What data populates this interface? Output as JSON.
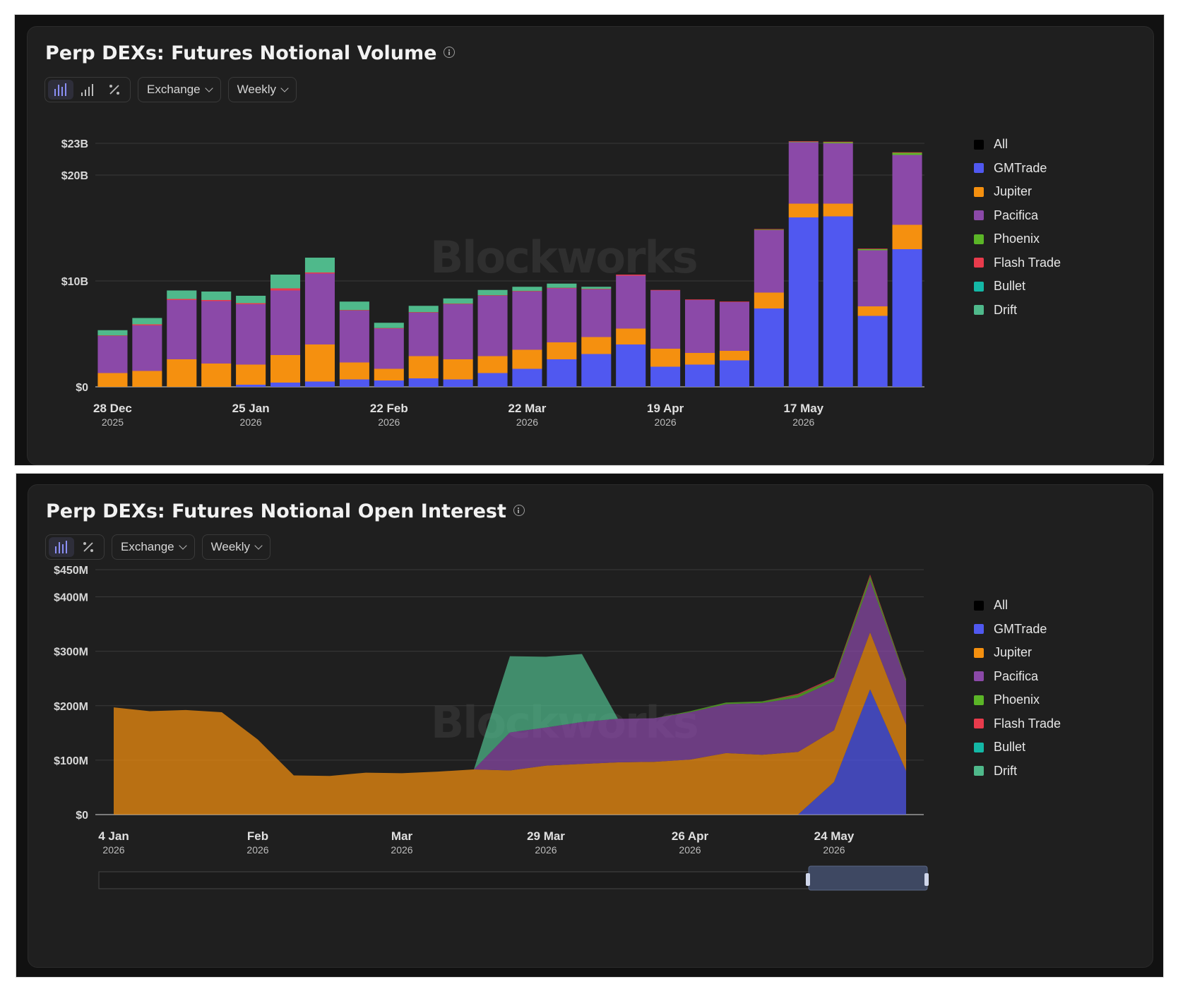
{
  "colors": {
    "All": "#000000",
    "GMTrade": "#5058f0",
    "Jupiter": "#f5900f",
    "Pacifica": "#8b49a8",
    "Phoenix": "#5bb527",
    "Flash Trade": "#e83b4c",
    "Bullet": "#14b8a6",
    "Drift": "#4fb98b"
  },
  "watermark": "Blockworks",
  "legend": [
    "All",
    "GMTrade",
    "Jupiter",
    "Pacifica",
    "Phoenix",
    "Flash Trade",
    "Bullet",
    "Drift"
  ],
  "volume": {
    "title": "Perp DEXs: Futures Notional Volume",
    "toolbar": {
      "icons": [
        "bar-chart-icon",
        "signal-bars-icon",
        "percent-icon"
      ],
      "dropdowns": [
        "Exchange",
        "Weekly"
      ]
    }
  },
  "oi": {
    "title": "Perp DEXs: Futures Notional Open Interest",
    "toolbar": {
      "icons": [
        "bar-chart-icon",
        "percent-icon"
      ],
      "dropdowns": [
        "Exchange",
        "Weekly"
      ]
    }
  },
  "chart_data": [
    {
      "type": "bar",
      "stacked": true,
      "title": "Perp DEXs: Futures Notional Volume",
      "y_unit": "USD billions",
      "ylim": [
        0,
        23
      ],
      "yticks": [
        {
          "value": 0,
          "label": "$0"
        },
        {
          "value": 10,
          "label": "$10B"
        },
        {
          "value": 20,
          "label": "$20B"
        },
        {
          "value": 23,
          "label": "$23B"
        }
      ],
      "xticks": [
        {
          "index": 0,
          "label": "28 Dec",
          "sub": "2025"
        },
        {
          "index": 4,
          "label": "25 Jan",
          "sub": "2026"
        },
        {
          "index": 8,
          "label": "22 Feb",
          "sub": "2026"
        },
        {
          "index": 12,
          "label": "22 Mar",
          "sub": "2026"
        },
        {
          "index": 16,
          "label": "19 Apr",
          "sub": "2026"
        },
        {
          "index": 20,
          "label": "17 May",
          "sub": "2026"
        }
      ],
      "series": [
        {
          "name": "GMTrade",
          "values": [
            0,
            0,
            0,
            0,
            0.2,
            0.4,
            0.5,
            0.7,
            0.6,
            0.8,
            0.7,
            1.3,
            1.7,
            2.6,
            3.1,
            4.0,
            1.9,
            2.1,
            2.5,
            7.4,
            16.0,
            16.1,
            6.7,
            13.0
          ]
        },
        {
          "name": "Jupiter",
          "values": [
            1.3,
            1.5,
            2.6,
            2.2,
            1.9,
            2.6,
            3.5,
            1.6,
            1.1,
            2.1,
            1.9,
            1.6,
            1.8,
            1.6,
            1.6,
            1.5,
            1.7,
            1.1,
            0.9,
            1.5,
            1.3,
            1.2,
            0.9,
            2.3
          ]
        },
        {
          "name": "Pacifica",
          "values": [
            3.5,
            4.3,
            5.6,
            5.9,
            5.7,
            6.1,
            6.7,
            4.9,
            3.8,
            4.1,
            5.2,
            5.7,
            5.5,
            5.1,
            4.5,
            5.0,
            5.5,
            5.0,
            4.6,
            5.9,
            5.8,
            5.7,
            5.3,
            6.6
          ]
        },
        {
          "name": "Phoenix",
          "values": [
            0,
            0,
            0,
            0,
            0,
            0,
            0,
            0,
            0,
            0,
            0,
            0,
            0,
            0,
            0,
            0,
            0,
            0,
            0,
            0.05,
            0.05,
            0.1,
            0.1,
            0.2
          ]
        },
        {
          "name": "Flash Trade",
          "values": [
            0.05,
            0.1,
            0.1,
            0.1,
            0.1,
            0.2,
            0.1,
            0.05,
            0.05,
            0.05,
            0.05,
            0.05,
            0.05,
            0.05,
            0.05,
            0.1,
            0.05,
            0.05,
            0.05,
            0.05,
            0.05,
            0.05,
            0.05,
            0.05
          ]
        },
        {
          "name": "Bullet",
          "values": [
            0,
            0,
            0,
            0,
            0,
            0,
            0,
            0,
            0,
            0,
            0,
            0,
            0,
            0,
            0,
            0,
            0,
            0,
            0,
            0,
            0,
            0,
            0,
            0
          ]
        },
        {
          "name": "Drift",
          "values": [
            0.5,
            0.6,
            0.8,
            0.8,
            0.7,
            1.3,
            1.4,
            0.8,
            0.5,
            0.6,
            0.5,
            0.5,
            0.4,
            0.4,
            0.2,
            0,
            0,
            0,
            0,
            0,
            0,
            0,
            0,
            0
          ]
        }
      ],
      "legend_position": "right"
    },
    {
      "type": "area",
      "stacked": true,
      "title": "Perp DEXs: Futures Notional Open Interest",
      "y_unit": "USD millions",
      "ylim": [
        0,
        450
      ],
      "yticks": [
        {
          "value": 0,
          "label": "$0"
        },
        {
          "value": 100,
          "label": "$100M"
        },
        {
          "value": 200,
          "label": "$200M"
        },
        {
          "value": 300,
          "label": "$300M"
        },
        {
          "value": 400,
          "label": "$400M"
        },
        {
          "value": 450,
          "label": "$450M"
        }
      ],
      "xticks": [
        {
          "index": 0,
          "label": "4 Jan",
          "sub": "2026"
        },
        {
          "index": 4,
          "label": "Feb",
          "sub": "2026"
        },
        {
          "index": 8,
          "label": "Mar",
          "sub": "2026"
        },
        {
          "index": 12,
          "label": "29 Mar",
          "sub": "2026"
        },
        {
          "index": 16,
          "label": "26 Apr",
          "sub": "2026"
        },
        {
          "index": 20,
          "label": "24 May",
          "sub": "2026"
        }
      ],
      "series": [
        {
          "name": "GMTrade",
          "values": [
            0,
            0,
            0,
            0,
            0,
            0,
            0,
            0,
            0,
            0,
            0,
            0,
            0,
            0,
            0,
            0,
            0,
            0,
            0,
            0,
            60,
            230,
            80
          ]
        },
        {
          "name": "Jupiter",
          "values": [
            197,
            190,
            192,
            188,
            138,
            72,
            71,
            77,
            76,
            79,
            83,
            81,
            90,
            93,
            96,
            97,
            101,
            113,
            110,
            115,
            95,
            105,
            85
          ]
        },
        {
          "name": "Pacifica",
          "values": [
            0,
            0,
            0,
            0,
            0,
            0,
            0,
            0,
            0,
            0,
            0,
            70,
            70,
            77,
            80,
            80,
            87,
            90,
            95,
            100,
            90,
            95,
            80
          ]
        },
        {
          "name": "Phoenix",
          "values": [
            0,
            0,
            0,
            0,
            0,
            0,
            0,
            0,
            0,
            0,
            0,
            0,
            0,
            0,
            0,
            0,
            2,
            3,
            3,
            5,
            5,
            8,
            3
          ]
        },
        {
          "name": "Flash Trade",
          "values": [
            0,
            0,
            0,
            0,
            0,
            0,
            0,
            0,
            0,
            0,
            0,
            0,
            0,
            0,
            0,
            0,
            0,
            0,
            0,
            2,
            2,
            3,
            1
          ]
        },
        {
          "name": "Bullet",
          "values": [
            0,
            0,
            0,
            0,
            0,
            0,
            0,
            0,
            0,
            0,
            0,
            0,
            0,
            0,
            0,
            0,
            0,
            0,
            0,
            0,
            0,
            0,
            0
          ]
        },
        {
          "name": "Drift",
          "values": [
            0,
            0,
            0,
            0,
            0,
            0,
            0,
            0,
            0,
            0,
            0,
            140,
            130,
            125,
            0,
            0,
            0,
            0,
            0,
            0,
            0,
            0,
            0
          ]
        }
      ],
      "legend_position": "right",
      "range_selector": "last ~3 months"
    }
  ]
}
